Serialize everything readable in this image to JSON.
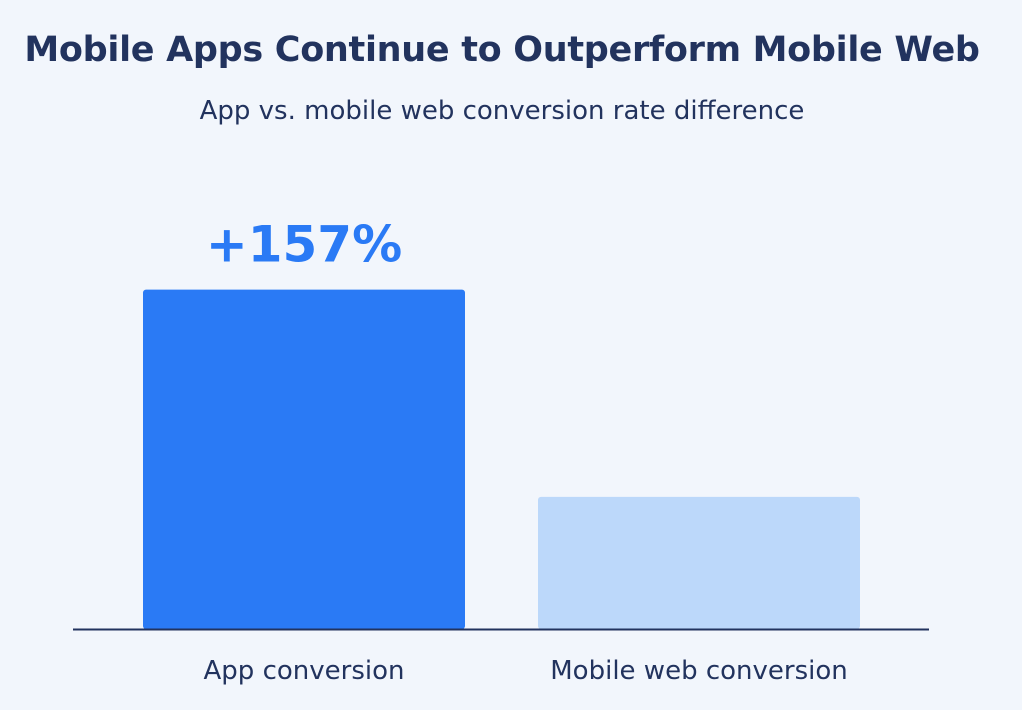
{
  "chart_data": {
    "type": "bar",
    "title": "Mobile Apps Continue to Outperform Mobile Web",
    "subtitle": "App vs. mobile web conversion rate difference",
    "categories": [
      "App conversion",
      "Mobile web conversion"
    ],
    "values": [
      257,
      100
    ],
    "annotations": [
      "+157%",
      ""
    ],
    "colors": [
      "#2a7af5",
      "#bcd8fa"
    ],
    "ylim": [
      0,
      265
    ],
    "grid": false,
    "xlabel": "",
    "ylabel": ""
  }
}
